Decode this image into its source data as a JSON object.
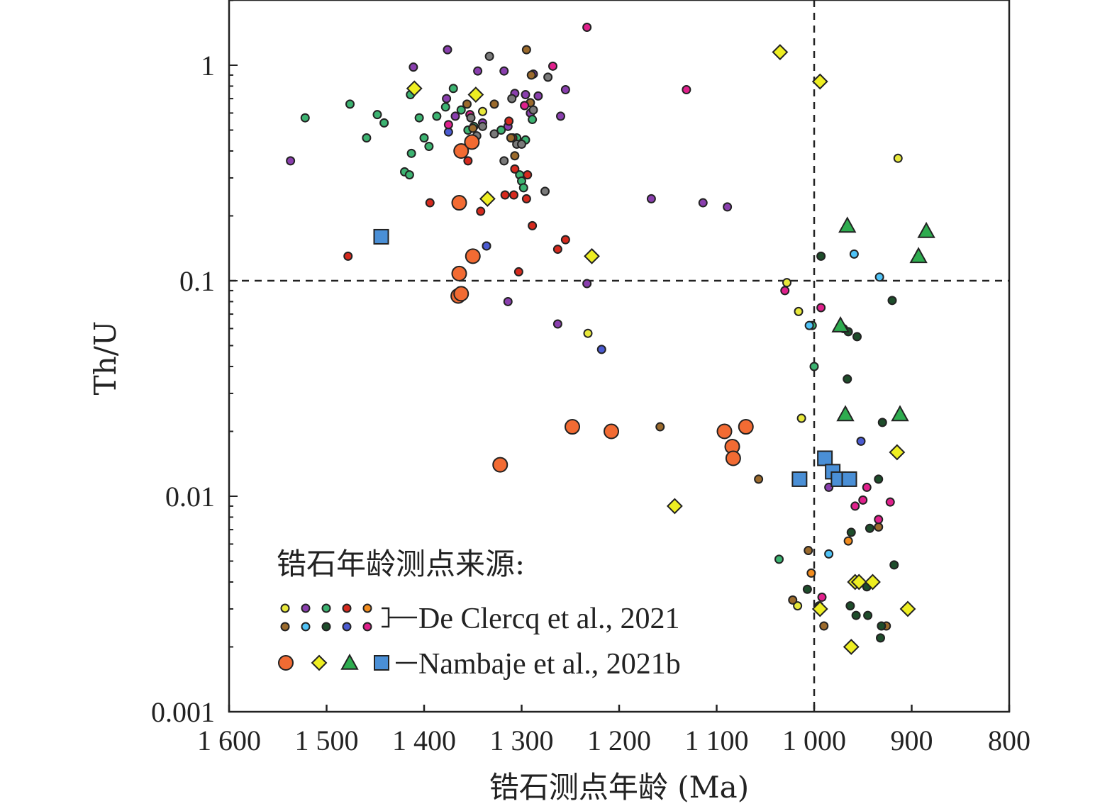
{
  "chart_data": {
    "type": "scatter",
    "xlabel": "锆石测点年龄 (Ma)",
    "ylabel": "Th/U",
    "x_reversed": true,
    "xlim": [
      1600,
      800
    ],
    "y_scale": "log",
    "ylim": [
      0.001,
      2
    ],
    "x_ticks": [
      {
        "value": 1600,
        "label": "1 600"
      },
      {
        "value": 1500,
        "label": "1 500"
      },
      {
        "value": 1400,
        "label": "1 400"
      },
      {
        "value": 1300,
        "label": "1 300"
      },
      {
        "value": 1200,
        "label": "1 200"
      },
      {
        "value": 1100,
        "label": "1 100"
      },
      {
        "value": 1000,
        "label": "1 000"
      },
      {
        "value": 900,
        "label": "900"
      },
      {
        "value": 800,
        "label": "800"
      }
    ],
    "y_ticks": [
      {
        "value": 1,
        "label": "1"
      },
      {
        "value": 0.1,
        "label": "0.1"
      },
      {
        "value": 0.01,
        "label": "0.01"
      },
      {
        "value": 0.001,
        "label": "0.001"
      }
    ],
    "reference_lines": {
      "th_u": 0.1,
      "age_ma": 1000
    },
    "legend": {
      "title": "锆石年龄测点来源:",
      "group1_label": "De Clercq et al., 2021",
      "group2_label": "Nambaje et al., 2021b",
      "group1_colors": [
        "#e8e83a",
        "#8a3fae",
        "#3cb371",
        "#d62a1e",
        "#f28c1e",
        "#9b6a2c",
        "#4fc3f7",
        "#1e4d2b",
        "#4b5bd1",
        "#e0208c"
      ],
      "group2_symbols": [
        {
          "shape": "circle",
          "color": "#f26b33"
        },
        {
          "shape": "diamond",
          "color": "#eeee22"
        },
        {
          "shape": "triangle",
          "color": "#2eac4f"
        },
        {
          "shape": "square",
          "color": "#4a8fd6"
        }
      ]
    },
    "series": [
      {
        "group": "De Clercq et al., 2021",
        "marker": "small-circle",
        "color": "#e8e83a",
        "points": [
          [
            1340,
            0.61
          ],
          [
            1232,
            0.057
          ],
          [
            1028,
            0.098
          ],
          [
            1013,
            0.023
          ],
          [
            1016,
            0.072
          ],
          [
            914,
            0.37
          ],
          [
            1017,
            0.0031
          ]
        ]
      },
      {
        "group": "De Clercq et al., 2021",
        "marker": "small-circle",
        "color": "#8a3fae",
        "points": [
          [
            1537,
            0.36
          ],
          [
            1411,
            0.98
          ],
          [
            1376,
            1.18
          ],
          [
            1377,
            0.7
          ],
          [
            1368,
            0.58
          ],
          [
            1345,
            0.94
          ],
          [
            1340,
            0.54
          ],
          [
            1318,
            0.94
          ],
          [
            1314,
            0.52
          ],
          [
            1307,
            0.74
          ],
          [
            1296,
            0.73
          ],
          [
            1291,
            0.6
          ],
          [
            1288,
            0.91
          ],
          [
            1283,
            0.72
          ],
          [
            1260,
            0.58
          ],
          [
            1255,
            0.77
          ],
          [
            1336,
            0.145
          ],
          [
            1314,
            0.08
          ],
          [
            1263,
            0.063
          ],
          [
            1233,
            0.097
          ],
          [
            1167,
            0.24
          ],
          [
            1114,
            0.23
          ],
          [
            1089,
            0.22
          ],
          [
            985,
            0.011
          ]
        ]
      },
      {
        "group": "De Clercq et al., 2021",
        "marker": "small-circle",
        "color": "#3cb371",
        "points": [
          [
            1522,
            0.57
          ],
          [
            1476,
            0.66
          ],
          [
            1459,
            0.46
          ],
          [
            1448,
            0.59
          ],
          [
            1441,
            0.54
          ],
          [
            1420,
            0.32
          ],
          [
            1414,
            0.73
          ],
          [
            1413,
            0.39
          ],
          [
            1415,
            0.31
          ],
          [
            1405,
            0.57
          ],
          [
            1400,
            0.46
          ],
          [
            1395,
            0.42
          ],
          [
            1387,
            0.58
          ],
          [
            1378,
            0.64
          ],
          [
            1370,
            0.78
          ],
          [
            1362,
            0.62
          ],
          [
            1355,
            0.5
          ],
          [
            1349,
            0.52
          ],
          [
            1321,
            0.5
          ],
          [
            1305,
            0.46
          ],
          [
            1302,
            0.31
          ],
          [
            1300,
            0.29
          ],
          [
            1298,
            0.27
          ],
          [
            1296,
            0.45
          ],
          [
            1289,
            0.56
          ],
          [
            1297,
            0.65
          ],
          [
            1036,
            0.0051
          ],
          [
            1002,
            0.062
          ],
          [
            1000,
            0.04
          ]
        ]
      },
      {
        "group": "De Clercq et al., 2021",
        "marker": "small-circle",
        "color": "#d62a1e",
        "points": [
          [
            1478,
            0.13
          ],
          [
            1394,
            0.23
          ],
          [
            1355,
            0.36
          ],
          [
            1342,
            0.21
          ],
          [
            1317,
            0.25
          ],
          [
            1313,
            0.55
          ],
          [
            1309,
            0.46
          ],
          [
            1308,
            0.25
          ],
          [
            1307,
            0.33
          ],
          [
            1303,
            0.11
          ],
          [
            1295,
            0.24
          ],
          [
            1294,
            0.31
          ],
          [
            1289,
            0.18
          ],
          [
            1263,
            0.14
          ],
          [
            1255,
            0.155
          ]
        ]
      },
      {
        "group": "De Clercq et al., 2021",
        "marker": "small-circle",
        "color": "#f28c1e",
        "points": [
          [
            1003,
            0.0044
          ],
          [
            965,
            0.0062
          ]
        ]
      },
      {
        "group": "De Clercq et al., 2021",
        "marker": "small-circle",
        "color": "#9b6a2c",
        "points": [
          [
            1356,
            0.66
          ],
          [
            1350,
            0.51
          ],
          [
            1328,
            0.66
          ],
          [
            1311,
            0.46
          ],
          [
            1307,
            0.38
          ],
          [
            1295,
            1.18
          ],
          [
            1291,
            0.67
          ],
          [
            1290,
            0.9
          ],
          [
            1158,
            0.021
          ],
          [
            1057,
            0.012
          ],
          [
            1022,
            0.0033
          ],
          [
            1006,
            0.0056
          ],
          [
            988,
            0.015
          ],
          [
            990,
            0.0025
          ],
          [
            934,
            0.0072
          ],
          [
            926,
            0.0025
          ]
        ]
      },
      {
        "group": "De Clercq et al., 2021",
        "marker": "small-circle",
        "color": "#4fc3f7",
        "points": [
          [
            1005,
            0.062
          ],
          [
            985,
            0.0054
          ],
          [
            959,
            0.133
          ],
          [
            933,
            0.104
          ]
        ]
      },
      {
        "group": "De Clercq et al., 2021",
        "marker": "small-circle",
        "color": "#1e4d2b",
        "points": [
          [
            1007,
            0.0037
          ],
          [
            995,
            0.0031
          ],
          [
            993,
            0.13
          ],
          [
            970,
            0.06
          ],
          [
            966,
            0.035
          ],
          [
            965,
            0.058
          ],
          [
            962,
            0.0068
          ],
          [
            963,
            0.0031
          ],
          [
            957,
            0.0028
          ],
          [
            956,
            0.055
          ],
          [
            946,
            0.0038
          ],
          [
            945,
            0.0028
          ],
          [
            943,
            0.0071
          ],
          [
            934,
            0.012
          ],
          [
            932,
            0.0022
          ],
          [
            930,
            0.022
          ],
          [
            931,
            0.0025
          ],
          [
            920,
            0.081
          ],
          [
            918,
            0.0048
          ]
        ]
      },
      {
        "group": "De Clercq et al., 2021",
        "marker": "small-circle",
        "color": "#4b5bd1",
        "points": [
          [
            1375,
            0.49
          ],
          [
            1218,
            0.048
          ],
          [
            1336,
            0.145
          ],
          [
            952,
            0.018
          ]
        ]
      },
      {
        "group": "De Clercq et al., 2021",
        "marker": "small-circle",
        "color": "#e0208c",
        "points": [
          [
            1375,
            0.53
          ],
          [
            1353,
            0.59
          ],
          [
            1297,
            0.65
          ],
          [
            1268,
            0.99
          ],
          [
            1233,
            1.5
          ],
          [
            1131,
            0.77
          ],
          [
            1030,
            0.09
          ],
          [
            993,
            0.075
          ],
          [
            992,
            0.0034
          ],
          [
            958,
            0.009
          ],
          [
            950,
            0.0096
          ],
          [
            946,
            0.011
          ],
          [
            922,
            0.0094
          ],
          [
            934,
            0.0078
          ]
        ]
      },
      {
        "group": "De Clercq et al., 2021",
        "marker": "small-circle",
        "color": "#7a7a7a",
        "points": [
          [
            1333,
            1.1
          ],
          [
            1352,
            0.57
          ],
          [
            1340,
            0.52
          ],
          [
            1318,
            0.36
          ],
          [
            1310,
            0.7
          ],
          [
            1305,
            0.43
          ],
          [
            1300,
            0.43
          ],
          [
            1288,
            0.62
          ],
          [
            1273,
            0.88
          ],
          [
            1276,
            0.26
          ],
          [
            1346,
            0.47
          ],
          [
            1328,
            0.48
          ]
        ]
      },
      {
        "group": "Nambaje et al., 2021b",
        "marker": "circle",
        "color": "#f26b33",
        "points": [
          [
            1362,
            0.4
          ],
          [
            1351,
            0.44
          ],
          [
            1364,
            0.23
          ],
          [
            1350,
            0.13
          ],
          [
            1364,
            0.108
          ],
          [
            1365,
            0.085
          ],
          [
            1362,
            0.087
          ],
          [
            1322,
            0.014
          ],
          [
            1248,
            0.021
          ],
          [
            1208,
            0.02
          ],
          [
            1092,
            0.02
          ],
          [
            1070,
            0.021
          ],
          [
            1084,
            0.017
          ],
          [
            1083,
            0.015
          ]
        ]
      },
      {
        "group": "Nambaje et al., 2021b",
        "marker": "diamond",
        "color": "#eeee22",
        "points": [
          [
            1410,
            0.78
          ],
          [
            1347,
            0.73
          ],
          [
            1335,
            0.24
          ],
          [
            1228,
            0.13
          ],
          [
            1143,
            0.009
          ],
          [
            1035,
            1.15
          ],
          [
            994,
            0.84
          ],
          [
            994,
            0.003
          ],
          [
            962,
            0.002
          ],
          [
            958,
            0.004
          ],
          [
            954,
            0.004
          ],
          [
            940,
            0.004
          ],
          [
            915,
            0.016
          ],
          [
            904,
            0.003
          ]
        ]
      },
      {
        "group": "Nambaje et al., 2021b",
        "marker": "triangle",
        "color": "#2eac4f",
        "points": [
          [
            966,
            0.18
          ],
          [
            973,
            0.062
          ],
          [
            968,
            0.024
          ],
          [
            912,
            0.024
          ],
          [
            893,
            0.13
          ],
          [
            885,
            0.17
          ]
        ]
      },
      {
        "group": "Nambaje et al., 2021b",
        "marker": "square",
        "color": "#4a8fd6",
        "points": [
          [
            1444,
            0.16
          ],
          [
            1015,
            0.012
          ],
          [
            989,
            0.015
          ],
          [
            981,
            0.013
          ],
          [
            975,
            0.012
          ],
          [
            964,
            0.012
          ]
        ]
      }
    ]
  }
}
